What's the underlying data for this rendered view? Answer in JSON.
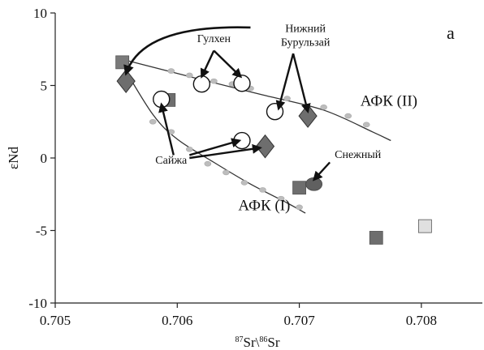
{
  "chart_data": {
    "type": "scatter",
    "panel_label": "a",
    "xlabel": "87Sr\\86Sr",
    "xlabel_parts": {
      "sup1": "87",
      "t1": "Sr\\",
      "sup2": "86",
      "t2": "Sr"
    },
    "ylabel": "εNd",
    "xlim": [
      0.705,
      0.7085
    ],
    "ylim": [
      -10,
      10
    ],
    "xticks": [
      0.705,
      0.706,
      0.707,
      0.708
    ],
    "xtick_labels": [
      "0.705",
      "0.706",
      "0.707",
      "0.708"
    ],
    "yticks": [
      -10,
      -5,
      0,
      5,
      10
    ],
    "ytick_labels": [
      "-10",
      "-5",
      "0",
      "5",
      "10"
    ],
    "grid": false,
    "legend": "none",
    "curves": [
      {
        "label": "АФК (II)",
        "color": "#333333",
        "bead_color": "#bdbdbd",
        "line": [
          [
            0.70555,
            6.8
          ],
          [
            0.7062,
            5.4
          ],
          [
            0.7067,
            4.35
          ],
          [
            0.7072,
            3.3
          ],
          [
            0.7076,
            1.8
          ],
          [
            0.70775,
            1.2
          ]
        ],
        "beads": [
          [
            0.70595,
            6.0
          ],
          [
            0.7061,
            5.7
          ],
          [
            0.7063,
            5.3
          ],
          [
            0.70645,
            5.1
          ],
          [
            0.7066,
            4.8
          ],
          [
            0.7069,
            4.1
          ],
          [
            0.7072,
            3.5
          ],
          [
            0.7074,
            2.9
          ],
          [
            0.70755,
            2.3
          ]
        ]
      },
      {
        "label": "АФК (I)",
        "color": "#333333",
        "bead_color": "#bdbdbd",
        "line": [
          [
            0.70555,
            6.4
          ],
          [
            0.7058,
            3.0
          ],
          [
            0.706,
            1.3
          ],
          [
            0.7063,
            -0.3
          ],
          [
            0.7066,
            -1.8
          ],
          [
            0.7069,
            -3.1
          ],
          [
            0.70705,
            -3.8
          ]
        ],
        "beads": [
          [
            0.7058,
            2.5
          ],
          [
            0.70595,
            1.8
          ],
          [
            0.7061,
            0.6
          ],
          [
            0.70625,
            -0.4
          ],
          [
            0.7064,
            -1.0
          ],
          [
            0.70655,
            -1.7
          ],
          [
            0.7067,
            -2.2
          ],
          [
            0.70685,
            -2.8
          ],
          [
            0.707,
            -3.4
          ]
        ]
      }
    ],
    "points": [
      {
        "marker": "square",
        "color": "#7a7a7a",
        "x": 0.70555,
        "y": 6.6
      },
      {
        "marker": "square",
        "color": "#6e6e6e",
        "x": 0.70593,
        "y": 4.0
      },
      {
        "marker": "square",
        "color": "#6e6e6e",
        "x": 0.707,
        "y": -2.05
      },
      {
        "marker": "square",
        "color": "#6e6e6e",
        "x": 0.70763,
        "y": -5.5
      },
      {
        "marker": "square",
        "color": "#e0e0e0",
        "x": 0.70803,
        "y": -4.7
      },
      {
        "marker": "diamond",
        "color": "#6e6e6e",
        "x": 0.70558,
        "y": 5.3
      },
      {
        "marker": "diamond",
        "color": "#6e6e6e",
        "x": 0.70672,
        "y": 0.8
      },
      {
        "marker": "diamond",
        "color": "#6e6e6e",
        "x": 0.70707,
        "y": 2.9
      },
      {
        "marker": "circle",
        "color": "#606060",
        "x": 0.70712,
        "y": -1.8
      },
      {
        "marker": "ring",
        "color": "#ffffff",
        "x": 0.70587,
        "y": 4.05
      },
      {
        "marker": "ring",
        "color": "#ffffff",
        "x": 0.7062,
        "y": 5.1
      },
      {
        "marker": "ring",
        "color": "#ffffff",
        "x": 0.70653,
        "y": 5.15
      },
      {
        "marker": "ring",
        "color": "#ffffff",
        "x": 0.70653,
        "y": 1.2
      },
      {
        "marker": "ring",
        "color": "#ffffff",
        "x": 0.7068,
        "y": 3.2
      }
    ],
    "annotations": [
      {
        "text": "Гулхен",
        "lines": [
          "Гулхен"
        ],
        "anchor": [
          0.7063,
          8.0
        ],
        "arrows": [
          [
            [
              0.7063,
              7.4
            ],
            [
              0.7062,
              5.6
            ]
          ],
          [
            [
              0.7063,
              7.4
            ],
            [
              0.70652,
              5.6
            ]
          ]
        ]
      },
      {
        "text": "Нижний Бурульзай",
        "lines": [
          "Нижний",
          "Бурульзай"
        ],
        "anchor": [
          0.70705,
          8.7
        ],
        "arrows": [
          [
            [
              0.70695,
              7.2
            ],
            [
              0.70683,
              3.4
            ]
          ],
          [
            [
              0.70695,
              7.2
            ],
            [
              0.70707,
              3.2
            ]
          ]
        ]
      },
      {
        "text": "Сайжа",
        "lines": [
          "Сайжа"
        ],
        "anchor": [
          0.70595,
          -0.4
        ],
        "arrows": [
          [
            [
              0.70597,
              0.2
            ],
            [
              0.70587,
              3.7
            ]
          ],
          [
            [
              0.7061,
              0.2
            ],
            [
              0.70651,
              1.2
            ]
          ],
          [
            [
              0.7061,
              0.0
            ],
            [
              0.70668,
              0.7
            ]
          ]
        ]
      },
      {
        "text": "Снежный",
        "lines": [
          "Снежный"
        ],
        "anchor": [
          0.70748,
          0.0
        ],
        "arrows": [
          [
            [
              0.70725,
              -0.3
            ],
            [
              0.70712,
              -1.5
            ]
          ]
        ]
      }
    ],
    "bracket": {
      "from": [
        0.7066,
        9.0
      ],
      "to": [
        0.70558,
        5.8
      ]
    },
    "curve_labels": [
      {
        "text": "АФК (II)",
        "x": 0.7075,
        "y": 3.6
      },
      {
        "text": "АФК (I)",
        "x": 0.7065,
        "y": -3.6
      }
    ]
  }
}
